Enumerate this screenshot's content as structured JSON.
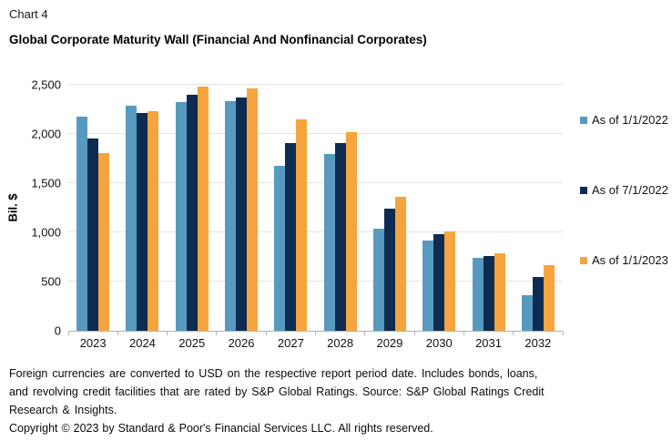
{
  "header": {
    "label": "Chart 4"
  },
  "title": "Global Corporate Maturity Wall (Financial And Nonfinancial Corporates)",
  "colors": {
    "series_light_blue": "#5899BF",
    "series_navy": "#0E2C52",
    "series_orange": "#F6A43D",
    "gridline": "#E4E4E4",
    "axis_line": "#B3B3B3"
  },
  "chart_data": {
    "type": "bar",
    "title": "Global Corporate Maturity Wall (Financial And Nonfinancial Corporates)",
    "categories": [
      "2023",
      "2024",
      "2025",
      "2026",
      "2027",
      "2028",
      "2029",
      "2030",
      "2031",
      "2032"
    ],
    "series": [
      {
        "name": "As of 1/1/2022",
        "color": "#5899BF",
        "values": [
          2180,
          2290,
          2320,
          2330,
          1680,
          1800,
          1040,
          920,
          740,
          360
        ]
      },
      {
        "name": "As of 7/1/2022",
        "color": "#0E2C52",
        "values": [
          1950,
          2210,
          2400,
          2370,
          1910,
          1910,
          1240,
          980,
          760,
          550
        ]
      },
      {
        "name": "As of 1/1/2023",
        "color": "#F6A43D",
        "values": [
          1810,
          2230,
          2480,
          2460,
          2150,
          2020,
          1360,
          1010,
          790,
          670
        ]
      }
    ],
    "xlabel": "",
    "ylabel": "Bil. $",
    "ylim": [
      0,
      2500
    ],
    "yticks": [
      {
        "label": "0",
        "value": 0
      },
      {
        "label": "500",
        "value": 500
      },
      {
        "label": "1,000",
        "value": 1000
      },
      {
        "label": "1,500",
        "value": 1500
      },
      {
        "label": "2,000",
        "value": 2000
      },
      {
        "label": "2,500",
        "value": 2500
      }
    ],
    "grid": true,
    "legend_position": "right"
  },
  "footnotes": {
    "lines": [
      "Foreign currencies are converted to USD on the respective report period date. Includes bonds, loans,",
      "and revolving credit facilities that are rated by S&P Global Ratings. Source: S&P Global Ratings Credit",
      "Research & Insights."
    ],
    "copyright": "Copyright © 2023 by Standard & Poor's Financial Services LLC. All rights reserved."
  }
}
